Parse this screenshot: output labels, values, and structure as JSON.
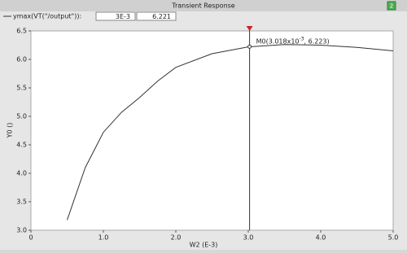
{
  "chart_data": {
    "type": "line",
    "title": "Transient Response",
    "window_badge": "2",
    "xlabel": "W2 (E-3)",
    "ylabel": "Y0 ()",
    "xlim": [
      0,
      5
    ],
    "ylim": [
      3,
      6.5
    ],
    "xticks": [
      0,
      {
        "value": 1,
        "label": "1.0"
      },
      {
        "value": 2,
        "label": "2.0"
      },
      {
        "value": 3,
        "label": "3.0"
      },
      {
        "value": 4,
        "label": "4.0"
      },
      {
        "value": 5,
        "label": "5.0"
      }
    ],
    "yticks": [
      {
        "value": 3,
        "label": "3.0"
      },
      {
        "value": 3.5,
        "label": "3.5"
      },
      {
        "value": 4,
        "label": "4.0"
      },
      {
        "value": 4.5,
        "label": "4.5"
      },
      {
        "value": 5,
        "label": "5.0"
      },
      {
        "value": 5.5,
        "label": "5.5"
      },
      {
        "value": 6,
        "label": "6.0"
      },
      {
        "value": 6.5,
        "label": "6.5"
      }
    ],
    "legend_fields": [
      "3E-3",
      "6.221"
    ],
    "series": [
      {
        "name": "ymax(VT(\"/output\")):",
        "color": "#333333",
        "x": [
          0.5,
          0.75,
          1.0,
          1.25,
          1.5,
          1.75,
          2.0,
          2.5,
          3.0,
          3.5,
          4.0,
          4.5,
          5.0
        ],
        "values": [
          3.18,
          4.1,
          4.72,
          5.07,
          5.33,
          5.62,
          5.86,
          6.1,
          6.22,
          6.26,
          6.25,
          6.21,
          6.15
        ]
      }
    ],
    "marker": {
      "x": 3.018,
      "y": 6.223,
      "label_prefix": "M0(3.018x10",
      "exponent": "-3",
      "label_suffix": ", 6.223)",
      "color": "#cc2222"
    }
  }
}
